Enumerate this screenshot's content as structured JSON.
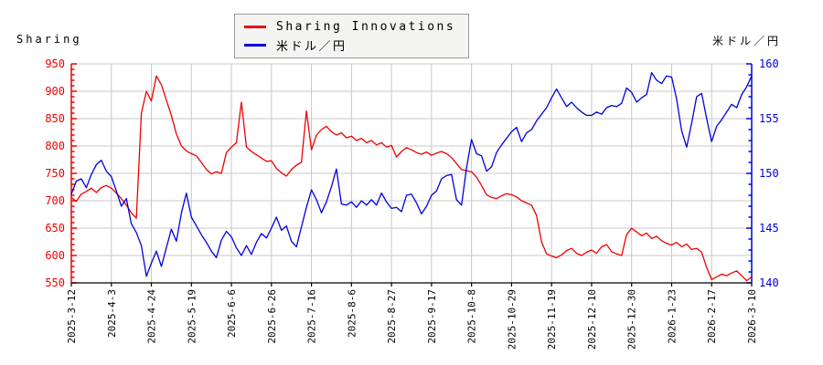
{
  "chart_data": {
    "type": "line",
    "title": "",
    "grid": true,
    "legend_position": "top-center",
    "x_tick_labels": [
      "2025-3-12",
      "2025-4-3",
      "2025-4-24",
      "2025-5-19",
      "2025-6-6",
      "2025-6-26",
      "2025-7-16",
      "2025-8-6",
      "2025-8-27",
      "2025-9-17",
      "2025-10-8",
      "2025-10-29",
      "2025-11-19",
      "2025-12-10",
      "2025-12-30",
      "2026-1-23",
      "2026-2-17",
      "2026-3-10"
    ],
    "left_axis": {
      "title": "Sharing",
      "min": 550,
      "max": 950,
      "ticks": [
        950,
        900,
        850,
        800,
        750,
        700,
        650,
        600,
        550
      ],
      "minor_step": 10,
      "color": "#ee0000"
    },
    "right_axis": {
      "title": "米ドル／円",
      "min": 140,
      "max": 160,
      "ticks": [
        160,
        155,
        150,
        145,
        140
      ],
      "minor_step": 1,
      "color": "#0000dd"
    },
    "gridline_color": "#c8c8c8",
    "bottom_axis_color": "#000000",
    "series": [
      {
        "name": "Sharing Innovations",
        "axis": "left",
        "color": "#ee0000",
        "values": [
          706,
          699,
          712,
          717,
          723,
          715,
          724,
          728,
          723,
          714,
          704,
          692,
          678,
          668,
          860,
          900,
          882,
          928,
          912,
          884,
          856,
          822,
          800,
          791,
          786,
          782,
          770,
          757,
          749,
          753,
          750,
          788,
          798,
          806,
          880,
          798,
          790,
          784,
          778,
          772,
          773,
          759,
          751,
          745,
          757,
          765,
          770,
          864,
          793,
          820,
          830,
          836,
          826,
          820,
          824,
          815,
          818,
          810,
          814,
          806,
          810,
          802,
          806,
          798,
          801,
          780,
          790,
          797,
          793,
          788,
          785,
          789,
          783,
          787,
          790,
          786,
          779,
          768,
          757,
          755,
          753,
          743,
          728,
          711,
          706,
          704,
          709,
          713,
          711,
          707,
          700,
          696,
          692,
          673,
          625,
          603,
          599,
          596,
          601,
          609,
          613,
          604,
          600,
          606,
          610,
          604,
          616,
          620,
          607,
          603,
          600,
          638,
          650,
          643,
          636,
          641,
          631,
          635,
          627,
          622,
          619,
          624,
          616,
          621,
          611,
          613,
          606,
          578,
          556,
          561,
          566,
          563,
          568,
          572,
          563,
          554,
          561
        ]
      },
      {
        "name": "米ドル／円",
        "axis": "right",
        "color": "#0000dd",
        "values": [
          148.1,
          149.3,
          149.5,
          148.7,
          149.9,
          150.8,
          151.2,
          150.2,
          149.7,
          148.4,
          147.0,
          147.7,
          145.4,
          144.6,
          143.4,
          140.6,
          141.8,
          142.9,
          141.5,
          143.2,
          144.9,
          143.8,
          146.4,
          148.2,
          146.0,
          145.2,
          144.4,
          143.7,
          142.9,
          142.3,
          143.9,
          144.7,
          144.2,
          143.2,
          142.5,
          143.4,
          142.6,
          143.7,
          144.5,
          144.1,
          145.0,
          146.0,
          144.8,
          145.2,
          143.8,
          143.3,
          145.1,
          146.9,
          148.5,
          147.6,
          146.4,
          147.4,
          148.8,
          150.4,
          147.2,
          147.1,
          147.4,
          146.9,
          147.5,
          147.1,
          147.6,
          147.1,
          148.2,
          147.4,
          146.8,
          146.9,
          146.5,
          148.0,
          148.1,
          147.3,
          146.3,
          147.0,
          148.0,
          148.4,
          149.5,
          149.8,
          149.9,
          147.6,
          147.1,
          150.5,
          153.1,
          151.8,
          151.6,
          150.2,
          150.6,
          151.9,
          152.6,
          153.2,
          153.8,
          154.2,
          152.9,
          153.7,
          154.0,
          154.8,
          155.4,
          156.0,
          156.9,
          157.7,
          156.9,
          156.1,
          156.5,
          156.0,
          155.6,
          155.3,
          155.3,
          155.6,
          155.4,
          156.0,
          156.2,
          156.1,
          156.4,
          157.8,
          157.4,
          156.5,
          156.9,
          157.2,
          159.2,
          158.5,
          158.2,
          158.9,
          158.8,
          156.8,
          153.9,
          152.4,
          154.6,
          157.0,
          157.3,
          155.0,
          152.9,
          154.3,
          154.9,
          155.6,
          156.3,
          156.0,
          157.2,
          157.9,
          158.9
        ]
      }
    ]
  }
}
